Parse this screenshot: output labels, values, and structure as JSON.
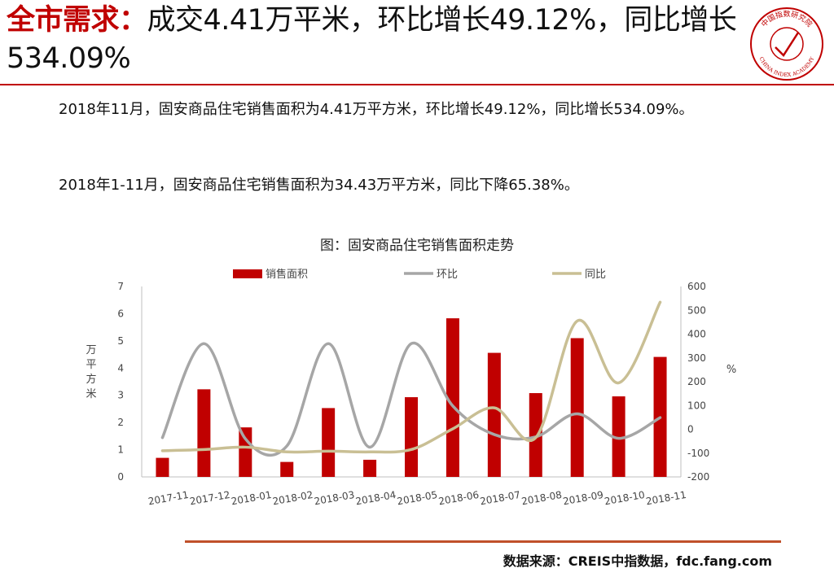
{
  "header": {
    "title_highlight": "全市需求：",
    "title_rest": "成交4.41万平米，环比增长49.12%，同比增长534.09%"
  },
  "logo": {
    "icon": "china-index-academy-seal-icon",
    "text_top": "中国指数研究院",
    "text_bottom": "CHINA INDEX ACADEMY"
  },
  "body": {
    "paragraph1": "2018年11月，固安商品住宅销售面积为4.41万平方米，环比增长49.12%，同比增长534.09%。",
    "paragraph2": "2018年1-11月，固安商品住宅销售面积为34.43万平方米，同比下降65.38%。"
  },
  "footer": {
    "source": "数据来源：CREIS中指数据，fdc.fang.com"
  },
  "colors": {
    "accent": "#c00000",
    "bar": "#c00000",
    "mom_line": "#a6a6a6",
    "yoy_line": "#c9bf94",
    "bottom_rule": "#c0502a"
  },
  "chart_data": {
    "type": "bar",
    "title": "图：固安商品住宅销售面积走势",
    "categories": [
      "2017-11",
      "2017-12",
      "2018-01",
      "2018-02",
      "2018-03",
      "2018-04",
      "2018-05",
      "2018-06",
      "2018-07",
      "2018-08",
      "2018-09",
      "2018-10",
      "2018-11"
    ],
    "series": [
      {
        "name": "销售面积",
        "type": "bar",
        "axis": "left",
        "values": [
          0.7,
          3.22,
          1.82,
          0.55,
          2.53,
          0.63,
          2.93,
          5.83,
          4.56,
          3.08,
          5.1,
          2.96,
          4.41
        ]
      },
      {
        "name": "环比",
        "type": "line",
        "axis": "right",
        "values": [
          -35,
          360,
          -40,
          -70,
          360,
          -75,
          360,
          98,
          -22,
          -32,
          65,
          -38,
          49.12
        ]
      },
      {
        "name": "同比",
        "type": "line",
        "axis": "right",
        "values": [
          -90,
          -85,
          -75,
          -95,
          -92,
          -95,
          -85,
          2,
          90,
          -35,
          455,
          195,
          534.09
        ]
      }
    ],
    "ylabel": "万平方米",
    "ylim": [
      0,
      7
    ],
    "yticks": [
      0,
      1,
      2,
      3,
      4,
      5,
      6,
      7
    ],
    "y2label": "%",
    "y2lim": [
      -200,
      600
    ],
    "y2ticks": [
      -200,
      -100,
      0,
      100,
      200,
      300,
      400,
      500,
      600
    ],
    "legend_position": "top",
    "grid": false
  }
}
